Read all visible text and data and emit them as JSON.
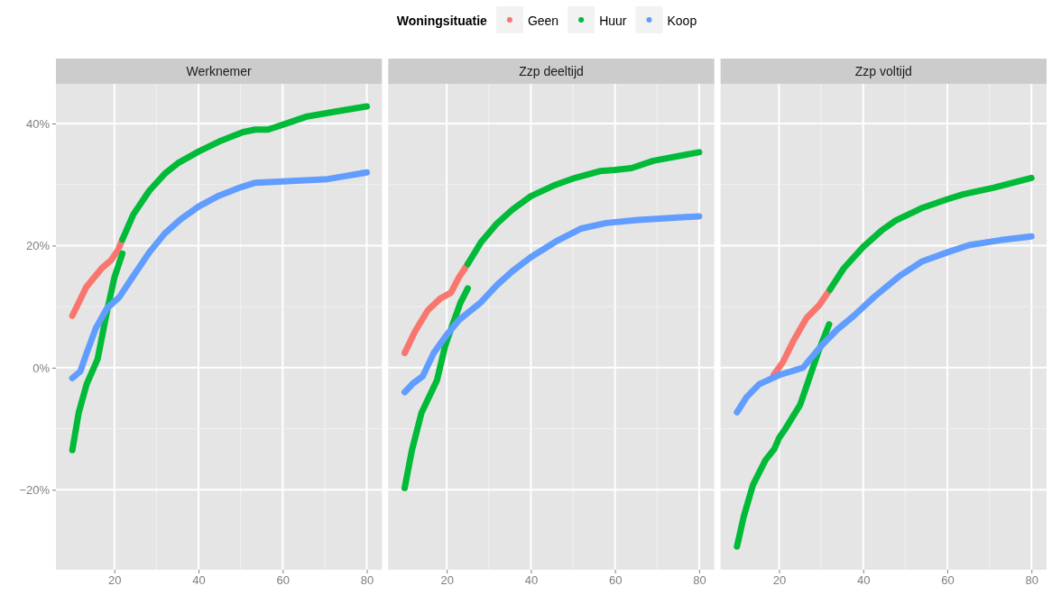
{
  "chart_data": [
    {
      "type": "line",
      "title": "Werknemer",
      "legend": "top",
      "legend_title": "Woningsituatie",
      "grid": true,
      "xlim": [
        6.1,
        83.6
      ],
      "xticks": [
        20,
        40,
        60,
        80
      ],
      "ylim": [
        -33.1,
        46.5
      ],
      "yticks": [
        {
          "value": -20,
          "label": "−20%"
        },
        {
          "value": 0,
          "label": "0%"
        },
        {
          "value": 20,
          "label": "20%"
        },
        {
          "value": 40,
          "label": "40%"
        }
      ],
      "series": [
        {
          "name": "Geen",
          "color": "#f8766d",
          "x": [
            10,
            13.3,
            17,
            19.2,
            20.8,
            21.9
          ],
          "values": [
            8.5,
            13.2,
            16.3,
            17.6,
            19.2,
            21
          ]
        },
        {
          "name": "Huur",
          "color": "#00ba38",
          "x": [
            10,
            11.5,
            13.4,
            16,
            18.2,
            20,
            21.9
          ],
          "values": [
            -13.5,
            -7.4,
            -2.7,
            1.4,
            9.1,
            14.8,
            18.7
          ]
        },
        {
          "color": "#00ba38",
          "x": [
            21.9,
            24.5,
            28.3,
            32,
            35.3,
            40,
            45.4,
            50.6,
            53.5,
            56.5,
            60,
            65.5,
            72.9,
            80
          ],
          "values": [
            21,
            25.1,
            29,
            31.8,
            33.6,
            35.4,
            37.2,
            38.6,
            39,
            39,
            39.8,
            41.1,
            42,
            42.8
          ]
        },
        {
          "name": "Koop",
          "color": "#619cff",
          "x": [
            10,
            11.9,
            13.4,
            15.6,
            18.2,
            21.2,
            23.8,
            28.3,
            32,
            35.7,
            40,
            44.6,
            49.8,
            53.5,
            60,
            70.7,
            80
          ],
          "values": [
            -1.7,
            -0.6,
            2.4,
            6.5,
            9.7,
            11.6,
            14.3,
            18.9,
            22,
            24.3,
            26.4,
            28.1,
            29.5,
            30.3,
            30.5,
            30.9,
            32
          ]
        }
      ]
    },
    {
      "type": "line",
      "title": "Zzp deeltijd",
      "grid": true,
      "tick_labels": "x",
      "xlim": [
        6.1,
        83.6
      ],
      "xticks": [
        20,
        40,
        60,
        80
      ],
      "ylim": [
        -33.1,
        46.5
      ],
      "yticks": [
        -20,
        0,
        20,
        40
      ],
      "series": [
        {
          "name": "Geen",
          "color": "#f8766d",
          "x": [
            10,
            12.5,
            15.5,
            18.4,
            21,
            22.9,
            25
          ],
          "values": [
            2.4,
            6,
            9.4,
            11.3,
            12.3,
            14.8,
            17
          ]
        },
        {
          "name": "Huur",
          "color": "#00ba38",
          "x": [
            10,
            11.7,
            14,
            17.7,
            19.6,
            21.4,
            23.3,
            25
          ],
          "values": [
            -19.7,
            -13.6,
            -7.4,
            -2,
            3.5,
            7.1,
            10.7,
            13
          ]
        },
        {
          "color": "#00ba38",
          "x": [
            25,
            28.1,
            31.9,
            35.6,
            40,
            45.3,
            50.5,
            56.4,
            60,
            63.9,
            69.1,
            80
          ],
          "values": [
            17,
            20.5,
            23.6,
            25.9,
            28.1,
            29.8,
            31.1,
            32.2,
            32.4,
            32.7,
            33.9,
            35.3
          ]
        },
        {
          "name": "Koop",
          "color": "#619cff",
          "x": [
            10,
            12.1,
            14.3,
            16.9,
            19.9,
            22.9,
            28.1,
            31.9,
            35.6,
            40,
            46,
            52,
            57.9,
            65.4,
            80
          ],
          "values": [
            -4,
            -2.5,
            -1.4,
            2.4,
            5.3,
            7.8,
            10.7,
            13.5,
            15.8,
            18.1,
            20.7,
            22.8,
            23.7,
            24.2,
            24.8
          ]
        }
      ]
    },
    {
      "type": "line",
      "title": "Zzp voltijd",
      "grid": true,
      "tick_labels": "x",
      "xlim": [
        6.1,
        83.6
      ],
      "xticks": [
        20,
        40,
        60,
        80
      ],
      "ylim": [
        -33.1,
        46.5
      ],
      "yticks": [
        -20,
        0,
        20,
        40
      ],
      "series": [
        {
          "name": "Geen",
          "color": "#f8766d",
          "x": [
            18.7,
            20.9,
            23.5,
            26.5,
            29.5,
            32.1
          ],
          "values": [
            -1.2,
            0.9,
            4.5,
            8.1,
            10.2,
            12.8
          ]
        },
        {
          "name": "Huur",
          "color": "#00ba38",
          "x": [
            10,
            11.6,
            13.8,
            16.8,
            18.9,
            20,
            21.6,
            25,
            27.2,
            29.5,
            31.9
          ],
          "values": [
            -29.3,
            -24.4,
            -19.2,
            -15.1,
            -13.3,
            -11.5,
            -9.9,
            -6.1,
            -1.7,
            2.9,
            7.1
          ]
        },
        {
          "color": "#00ba38",
          "x": [
            32.1,
            35.4,
            40,
            44.4,
            47.7,
            54.1,
            60,
            63.7,
            71.1,
            80
          ],
          "values": [
            12.8,
            16.3,
            19.8,
            22.5,
            24.1,
            26.2,
            27.6,
            28.4,
            29.5,
            31.1
          ]
        },
        {
          "name": "Koop",
          "color": "#619cff",
          "x": [
            10,
            12.3,
            15.3,
            20,
            25.7,
            28,
            30.2,
            33.9,
            37.6,
            42.8,
            48.8,
            54,
            60,
            65.3,
            72.7,
            80
          ],
          "values": [
            -7.3,
            -4.8,
            -2.7,
            -1.2,
            0,
            1.9,
            3.7,
            6.3,
            8.4,
            11.7,
            15.1,
            17.4,
            18.9,
            20.1,
            20.9,
            21.5
          ]
        }
      ]
    }
  ]
}
